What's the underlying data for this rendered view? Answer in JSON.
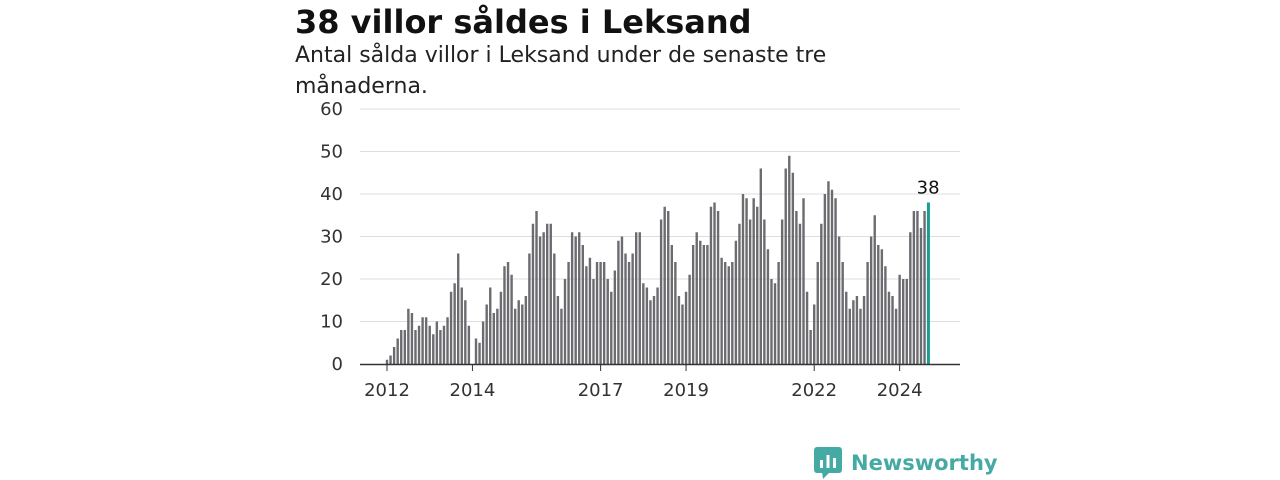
{
  "header": {
    "title": "38 villor såldes i Leksand",
    "subtitle": "Antal sålda villor i Leksand under de senaste tre månaderna."
  },
  "brand": {
    "name": "Newsworthy",
    "icon": "newsworthy-logo-icon",
    "color": "#46aaa4"
  },
  "colors": {
    "bar": "#6b6b70",
    "highlight": "#1a9c93",
    "grid": "#dddddd",
    "axis": "#333333"
  },
  "chart_data": {
    "type": "bar",
    "title": "38 villor såldes i Leksand",
    "subtitle": "Antal sålda villor i Leksand under de senaste tre månaderna.",
    "xlabel": "",
    "ylabel": "",
    "ylim": [
      0,
      60
    ],
    "y_ticks": [
      0,
      10,
      20,
      30,
      40,
      50,
      60
    ],
    "x_ticks": [
      "2012",
      "2014",
      "2017",
      "2019",
      "2022",
      "2024"
    ],
    "grid": true,
    "legend": "none",
    "highlight_label": "38",
    "bar_interval": "month",
    "start_period": "2012-01",
    "end_period": "2024-09",
    "values": [
      1,
      2,
      4,
      6,
      8,
      8,
      13,
      12,
      8,
      9,
      11,
      11,
      9,
      7,
      10,
      8,
      9,
      11,
      17,
      19,
      26,
      18,
      15,
      9,
      0,
      6,
      5,
      10,
      14,
      18,
      12,
      13,
      17,
      23,
      24,
      21,
      13,
      15,
      14,
      16,
      26,
      33,
      36,
      30,
      31,
      33,
      33,
      26,
      16,
      13,
      20,
      24,
      31,
      30,
      31,
      28,
      23,
      25,
      20,
      24,
      24,
      24,
      20,
      17,
      22,
      29,
      30,
      26,
      24,
      26,
      31,
      31,
      19,
      18,
      15,
      16,
      18,
      34,
      37,
      36,
      28,
      24,
      16,
      14,
      17,
      21,
      28,
      31,
      29,
      28,
      28,
      37,
      38,
      36,
      25,
      24,
      23,
      24,
      29,
      33,
      40,
      39,
      34,
      39,
      37,
      46,
      34,
      27,
      20,
      19,
      24,
      34,
      46,
      49,
      45,
      36,
      33,
      39,
      17,
      8,
      14,
      24,
      33,
      40,
      43,
      41,
      39,
      30,
      24,
      17,
      13,
      15,
      16,
      13,
      16,
      24,
      30,
      35,
      28,
      27,
      23,
      17,
      16,
      13,
      21,
      20,
      20,
      31,
      36,
      36,
      32,
      36,
      38
    ]
  }
}
